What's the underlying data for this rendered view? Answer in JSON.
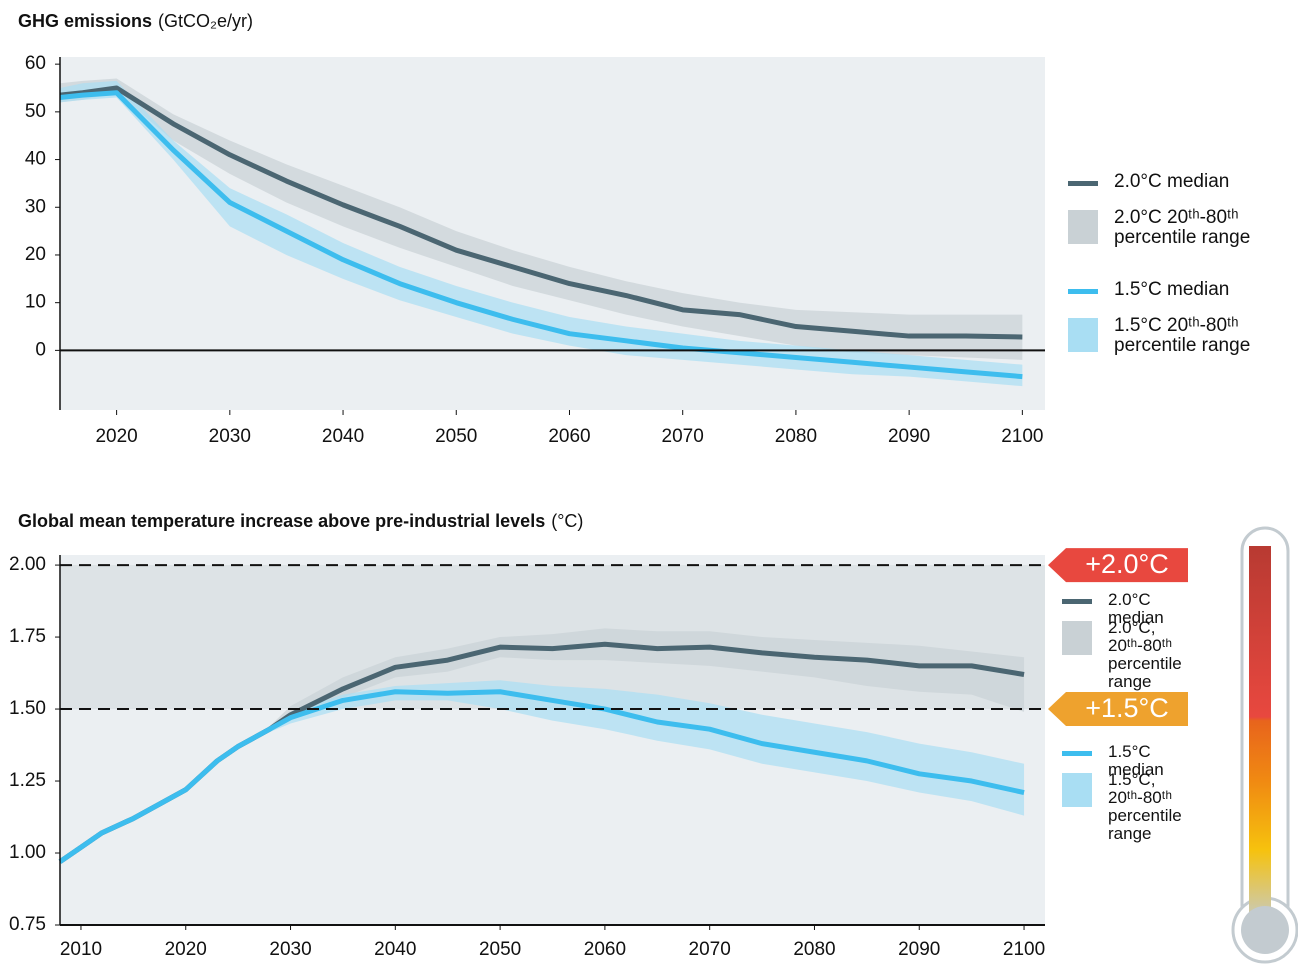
{
  "chart_data": [
    {
      "type": "line",
      "title": "GHG emissions",
      "units": "(GtCO₂e/yr)",
      "x": [
        2015,
        2017,
        2020,
        2025,
        2030,
        2035,
        2040,
        2045,
        2050,
        2055,
        2060,
        2065,
        2070,
        2075,
        2080,
        2085,
        2090,
        2095,
        2100
      ],
      "series": [
        {
          "name": "2.0°C median",
          "color": "#4b6672",
          "values": [
            53.5,
            54,
            55,
            47.5,
            41,
            35.5,
            30.5,
            26,
            21,
            17.5,
            14,
            11.5,
            8.5,
            7.5,
            5,
            4,
            3,
            3,
            2.8
          ]
        },
        {
          "name": "2.0°C 20ᵗʰ-80ᵗʰ percentile range",
          "color": "#c9d1d5",
          "low": [
            52,
            52.5,
            54,
            44,
            37,
            31,
            26,
            21.5,
            17.5,
            13.5,
            10.5,
            7.5,
            5,
            3,
            1,
            -0.5,
            -1,
            -1.5,
            -2
          ],
          "high": [
            56,
            56.5,
            57,
            49.5,
            44,
            39,
            34.5,
            30,
            25,
            21,
            17.5,
            14.5,
            12,
            10,
            8.5,
            8,
            7.5,
            7.5,
            7.5
          ]
        },
        {
          "name": "1.5°C median",
          "color": "#3dbdee",
          "values": [
            53,
            53.5,
            54,
            42,
            31,
            25,
            19,
            14,
            10,
            6.5,
            3.5,
            2,
            0.5,
            -0.5,
            -1.5,
            -2.5,
            -3.5,
            -4.5,
            -5.5
          ]
        },
        {
          "name": "1.5°C 20ᵗʰ-80ᵗʰ percentile range",
          "color": "#a9def3",
          "low": [
            52,
            52.5,
            53,
            40,
            26,
            20,
            15,
            10.5,
            7,
            3.5,
            1,
            -1,
            -2,
            -3,
            -4,
            -5,
            -5.5,
            -6.5,
            -7.5
          ],
          "high": [
            55,
            56,
            56.5,
            44,
            34,
            28.5,
            22.5,
            17.5,
            13.5,
            10,
            7,
            5,
            3.5,
            2,
            1,
            0,
            -1,
            -2,
            -3
          ]
        }
      ],
      "xlim": [
        2015,
        2102
      ],
      "xticks": [
        2020,
        2030,
        2040,
        2050,
        2060,
        2070,
        2080,
        2090,
        2100
      ],
      "ylim": [
        -12.5,
        61.5
      ],
      "yticks": [
        0,
        10,
        20,
        30,
        40,
        50,
        60
      ],
      "grid": false
    },
    {
      "type": "line",
      "title": "Global mean temperature increase above pre-industrial levels",
      "units": "(°C)",
      "x": [
        2008,
        2010,
        2012,
        2015,
        2018,
        2020,
        2023,
        2025,
        2028,
        2030,
        2035,
        2040,
        2045,
        2050,
        2055,
        2060,
        2065,
        2070,
        2075,
        2080,
        2085,
        2090,
        2095,
        2100
      ],
      "series": [
        {
          "name": "2.0°C median",
          "color": "#4b6672",
          "values": [
            0.97,
            1.02,
            1.07,
            1.12,
            1.18,
            1.22,
            1.32,
            1.37,
            1.43,
            1.48,
            1.57,
            1.645,
            1.67,
            1.715,
            1.71,
            1.725,
            1.71,
            1.715,
            1.695,
            1.68,
            1.67,
            1.65,
            1.65,
            1.62
          ]
        },
        {
          "name": "2.0°C, 20ᵗʰ-80ᵗʰ percentile range",
          "color": "#c9d1d5",
          "low": [
            0.96,
            1.01,
            1.06,
            1.11,
            1.17,
            1.21,
            1.31,
            1.36,
            1.42,
            1.47,
            1.54,
            1.61,
            1.63,
            1.68,
            1.67,
            1.67,
            1.66,
            1.65,
            1.63,
            1.61,
            1.58,
            1.56,
            1.55,
            1.49
          ],
          "high": [
            0.98,
            1.03,
            1.08,
            1.13,
            1.19,
            1.23,
            1.33,
            1.38,
            1.44,
            1.51,
            1.61,
            1.68,
            1.71,
            1.75,
            1.76,
            1.78,
            1.77,
            1.77,
            1.75,
            1.74,
            1.73,
            1.72,
            1.7,
            1.68
          ]
        },
        {
          "name": "1.5°C median",
          "color": "#3dbdee",
          "values": [
            0.97,
            1.02,
            1.07,
            1.12,
            1.18,
            1.22,
            1.32,
            1.37,
            1.43,
            1.47,
            1.53,
            1.56,
            1.555,
            1.56,
            1.53,
            1.5,
            1.455,
            1.43,
            1.38,
            1.35,
            1.32,
            1.275,
            1.25,
            1.21
          ]
        },
        {
          "name": "1.5°C, 20ᵗʰ-80ᵗʰ percentile range",
          "color": "#a9def3",
          "low": [
            0.96,
            1.01,
            1.06,
            1.11,
            1.17,
            1.21,
            1.31,
            1.36,
            1.42,
            1.45,
            1.5,
            1.53,
            1.53,
            1.5,
            1.46,
            1.43,
            1.39,
            1.36,
            1.31,
            1.28,
            1.25,
            1.21,
            1.18,
            1.13
          ],
          "high": [
            0.98,
            1.03,
            1.08,
            1.13,
            1.19,
            1.23,
            1.33,
            1.38,
            1.44,
            1.49,
            1.55,
            1.58,
            1.59,
            1.6,
            1.58,
            1.57,
            1.55,
            1.52,
            1.48,
            1.45,
            1.42,
            1.38,
            1.35,
            1.31
          ]
        }
      ],
      "thresholds": [
        {
          "value": 2,
          "label": "+2.0°C",
          "color": "#e8483f"
        },
        {
          "value": 1.5,
          "label": "+1.5°C",
          "color": "#eea22e"
        }
      ],
      "xlim": [
        2008,
        2102
      ],
      "xticks": [
        2010,
        2020,
        2030,
        2040,
        2050,
        2060,
        2070,
        2080,
        2090,
        2100
      ],
      "ylim": [
        0.75,
        2.035
      ],
      "yticks": [
        0.75,
        {
          "value": 1,
          "label": "1.00"
        },
        1.25,
        {
          "value": 1.5,
          "label": "1.50"
        },
        1.75,
        {
          "value": 2,
          "label": "2.00"
        }
      ],
      "grid": false
    }
  ]
}
